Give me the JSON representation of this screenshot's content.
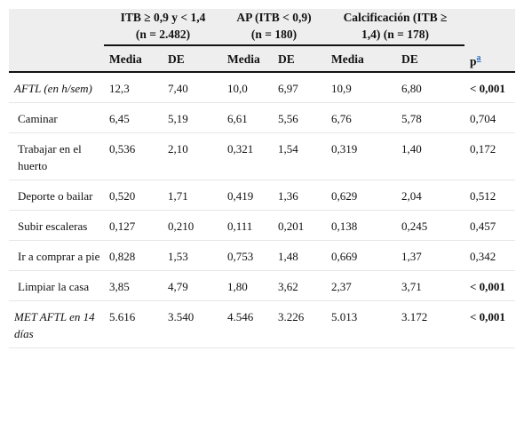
{
  "header": {
    "groups": [
      {
        "line1": "ITB ≥ 0,9 y < 1,4",
        "line2": "(n = 2.482)"
      },
      {
        "line1": "AP (ITB < 0,9)",
        "line2": "(n = 180)"
      },
      {
        "line1": "Calcificación (ITB ≥",
        "line2": "1,4) (n = 178)"
      }
    ],
    "subheaders": [
      "Media",
      "DE",
      "Media",
      "DE",
      "Media",
      "DE"
    ],
    "p_label": "p",
    "p_sup": "a"
  },
  "rows": [
    {
      "label": "AFTL (en h/sem)",
      "italic": true,
      "values": [
        "12,3",
        "7,40",
        "10,0",
        "6,97",
        "10,9",
        "6,80"
      ],
      "p": "< 0,001",
      "p_bold": true
    },
    {
      "label": "Caminar",
      "italic": false,
      "values": [
        "6,45",
        "5,19",
        "6,61",
        "5,56",
        "6,76",
        "5,78"
      ],
      "p": "0,704",
      "p_bold": false
    },
    {
      "label": "Trabajar en el huerto",
      "italic": false,
      "values": [
        "0,536",
        "2,10",
        "0,321",
        "1,54",
        "0,319",
        "1,40"
      ],
      "p": "0,172",
      "p_bold": false
    },
    {
      "label": "Deporte o bailar",
      "italic": false,
      "values": [
        "0,520",
        "1,71",
        "0,419",
        "1,36",
        "0,629",
        "2,04"
      ],
      "p": "0,512",
      "p_bold": false
    },
    {
      "label": "Subir escaleras",
      "italic": false,
      "values": [
        "0,127",
        "0,210",
        "0,111",
        "0,201",
        "0,138",
        "0,245"
      ],
      "p": "0,457",
      "p_bold": false
    },
    {
      "label": "Ir a comprar a pie",
      "italic": false,
      "values": [
        "0,828",
        "1,53",
        "0,753",
        "1,48",
        "0,669",
        "1,37"
      ],
      "p": "0,342",
      "p_bold": false
    },
    {
      "label": "Limpiar la casa",
      "italic": false,
      "values": [
        "3,85",
        "4,79",
        "1,80",
        "3,62",
        "2,37",
        "3,71"
      ],
      "p": "< 0,001",
      "p_bold": true
    },
    {
      "label": "MET AFTL en 14 días",
      "italic": true,
      "values": [
        "5.616",
        "3.540",
        "4.546",
        "3.226",
        "5.013",
        "3.172"
      ],
      "p": "< 0,001",
      "p_bold": true
    }
  ]
}
